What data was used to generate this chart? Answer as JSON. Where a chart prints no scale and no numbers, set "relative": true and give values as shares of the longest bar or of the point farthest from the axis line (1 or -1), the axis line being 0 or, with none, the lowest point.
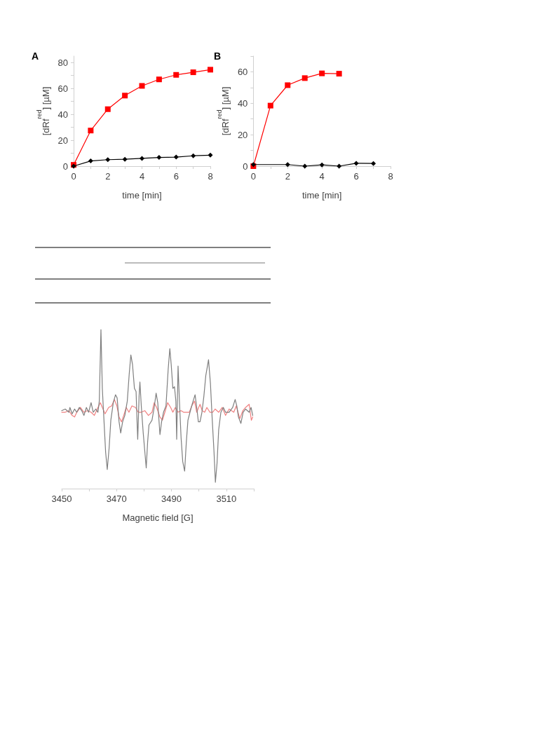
{
  "chart_data": [
    {
      "type": "line",
      "title": "A",
      "xlabel": "time [min]",
      "ylabel": "[dRf$^{red}$] [µM]",
      "x": [
        0,
        1,
        2,
        3,
        4,
        5,
        6,
        7,
        8
      ],
      "series": [
        {
          "color": "#000000",
          "marker": "diamond",
          "values": [
            0,
            4,
            5,
            5.3,
            6,
            6.7,
            7,
            8,
            8.5
          ]
        },
        {
          "color": "#ff0000",
          "marker": "square",
          "values": [
            1,
            27.5,
            44,
            54.5,
            62,
            67,
            70.5,
            72.5,
            74.5
          ]
        }
      ],
      "xlim": [
        0,
        8
      ],
      "xticks": [
        0,
        {
          "value": 1,
          "label": null
        },
        2,
        {
          "value": 3,
          "label": null
        },
        4,
        {
          "value": 5,
          "label": null
        },
        6,
        {
          "value": 7,
          "label": null
        },
        8
      ],
      "ylim": [
        0,
        85
      ],
      "yticks": [
        0,
        {
          "value": 10,
          "label": null
        },
        20,
        {
          "value": 30,
          "label": null
        },
        40,
        {
          "value": 50,
          "label": null
        },
        60,
        {
          "value": 70,
          "label": null
        },
        80
      ]
    },
    {
      "type": "line",
      "title": "B",
      "xlabel": "time [min]",
      "ylabel": "[dRf$^{red}$] [µM]",
      "series": [
        {
          "color": "#000000",
          "marker": "diamond",
          "x": [
            0,
            2,
            3,
            4,
            5,
            6,
            7
          ],
          "values": [
            1,
            1,
            0,
            0.8,
            0,
            1.8,
            1.7
          ]
        },
        {
          "color": "#ff0000",
          "marker": "square",
          "x": [
            0,
            1,
            2,
            3,
            4,
            5
          ],
          "values": [
            0,
            38.5,
            51.5,
            56,
            59,
            58.8
          ]
        }
      ],
      "xlim": [
        0,
        8
      ],
      "xticks": [
        0,
        {
          "value": 1,
          "label": null
        },
        2,
        {
          "value": 3,
          "label": null
        },
        4,
        {
          "value": 5,
          "label": null
        },
        6,
        {
          "value": 7,
          "label": null
        },
        8
      ],
      "ylim": [
        0,
        70
      ],
      "yticks": [
        0,
        {
          "value": 10,
          "label": null
        },
        20,
        {
          "value": 30,
          "label": null
        },
        40,
        {
          "value": 50,
          "label": null
        },
        60,
        {
          "value": 70,
          "label": null
        }
      ]
    },
    {
      "type": "line",
      "xlabel": "Magnetic field [G]",
      "relative": true,
      "tick_labels": "x",
      "marker": "none",
      "series": [
        {
          "color": "#7f7f7f",
          "x": [
            3450.0,
            3451.3,
            3452.6,
            3453.0,
            3453.8,
            3454.7,
            3455.5,
            3456.4,
            3457.3,
            3458.1,
            3459.0,
            3459.8,
            3460.7,
            3461.5,
            3462.4,
            3463.2,
            3463.7,
            3464.3,
            3464.8,
            3465.4,
            3466.0,
            3466.6,
            3467.3,
            3467.9,
            3468.8,
            3469.6,
            3470.2,
            3470.9,
            3471.5,
            3472.2,
            3473.0,
            3473.9,
            3474.6,
            3475.2,
            3475.8,
            3476.5,
            3477.1,
            3477.5,
            3477.7,
            3478.2,
            3478.5,
            3479.0,
            3479.7,
            3480.3,
            3480.8,
            3481.3,
            3481.8,
            3482.9,
            3483.7,
            3484.4,
            3485.0,
            3485.8,
            3486.4,
            3487.1,
            3488.0,
            3488.8,
            3489.4,
            3489.9,
            3490.5,
            3491.1,
            3491.6,
            3491.9,
            3492.4,
            3492.9,
            3493.5,
            3494.1,
            3494.8,
            3495.4,
            3496.0,
            3496.9,
            3497.7,
            3498.6,
            3499.2,
            3499.8,
            3500.4,
            3501.1,
            3501.8,
            3502.5,
            3503.5,
            3504.2,
            3504.8,
            3505.5,
            3506.0,
            3506.6,
            3507.2,
            3508.0,
            3508.9,
            3509.7,
            3511.0,
            3512.3,
            3513.2,
            3513.8,
            3514.4,
            3515.3,
            3516.1,
            3517.0,
            3518.3,
            3519.0,
            3519.6
          ],
          "values": [
            0.49,
            0.5,
            0.48,
            0.51,
            0.47,
            0.5,
            0.48,
            0.51,
            0.49,
            0.46,
            0.51,
            0.48,
            0.54,
            0.48,
            0.5,
            0.48,
            0.55,
            1.0,
            0.63,
            0.43,
            0.23,
            0.12,
            0.26,
            0.43,
            0.54,
            0.59,
            0.57,
            0.42,
            0.35,
            0.42,
            0.46,
            0.55,
            0.72,
            0.84,
            0.78,
            0.63,
            0.61,
            0.4,
            0.31,
            0.58,
            0.67,
            0.52,
            0.35,
            0.23,
            0.13,
            0.29,
            0.4,
            0.43,
            0.51,
            0.6,
            0.54,
            0.34,
            0.42,
            0.48,
            0.52,
            0.75,
            0.88,
            0.78,
            0.63,
            0.64,
            0.55,
            0.31,
            0.77,
            0.55,
            0.32,
            0.17,
            0.11,
            0.29,
            0.43,
            0.49,
            0.54,
            0.59,
            0.51,
            0.42,
            0.42,
            0.48,
            0.58,
            0.71,
            0.81,
            0.66,
            0.45,
            0.23,
            0.04,
            0.16,
            0.37,
            0.48,
            0.51,
            0.48,
            0.48,
            0.51,
            0.56,
            0.52,
            0.45,
            0.41,
            0.48,
            0.5,
            0.48,
            0.51,
            0.46
          ]
        },
        {
          "color": "#f08080",
          "x": [
            3450.0,
            3451.3,
            3452.6,
            3453.8,
            3454.7,
            3455.5,
            3456.8,
            3458.1,
            3459.4,
            3460.7,
            3461.9,
            3463.2,
            3464.1,
            3464.8,
            3465.8,
            3467.1,
            3468.2,
            3469.2,
            3470.1,
            3470.9,
            3471.8,
            3472.6,
            3473.5,
            3474.5,
            3475.6,
            3476.9,
            3477.9,
            3479.0,
            3480.3,
            3481.6,
            3482.9,
            3483.7,
            3484.6,
            3485.8,
            3486.7,
            3487.6,
            3488.6,
            3489.7,
            3490.5,
            3491.4,
            3492.4,
            3493.5,
            3494.4,
            3495.7,
            3496.5,
            3497.4,
            3498.4,
            3499.2,
            3500.4,
            3501.2,
            3502.1,
            3502.9,
            3504.0,
            3505.0,
            3505.9,
            3507.2,
            3508.5,
            3509.7,
            3511.0,
            3512.7,
            3513.6,
            3514.9,
            3516.0,
            3517.0,
            3518.3,
            3519.1,
            3519.6
          ],
          "values": [
            0.48,
            0.48,
            0.49,
            0.46,
            0.45,
            0.48,
            0.51,
            0.48,
            0.49,
            0.48,
            0.46,
            0.51,
            0.54,
            0.51,
            0.47,
            0.51,
            0.52,
            0.56,
            0.52,
            0.45,
            0.42,
            0.46,
            0.51,
            0.48,
            0.52,
            0.51,
            0.48,
            0.48,
            0.49,
            0.46,
            0.48,
            0.54,
            0.51,
            0.45,
            0.43,
            0.48,
            0.54,
            0.51,
            0.48,
            0.51,
            0.48,
            0.49,
            0.48,
            0.48,
            0.48,
            0.52,
            0.55,
            0.48,
            0.53,
            0.49,
            0.48,
            0.51,
            0.48,
            0.48,
            0.5,
            0.48,
            0.51,
            0.46,
            0.5,
            0.48,
            0.52,
            0.44,
            0.49,
            0.51,
            0.53,
            0.43,
            0.45
          ]
        }
      ],
      "xlim": [
        3450,
        3520
      ],
      "xticks": [
        3450,
        {
          "value": 3460,
          "label": null
        },
        3470,
        {
          "value": 3480,
          "label": null
        },
        3490,
        {
          "value": 3500,
          "label": null
        },
        3510,
        {
          "value": 3520,
          "label": null
        }
      ]
    }
  ]
}
